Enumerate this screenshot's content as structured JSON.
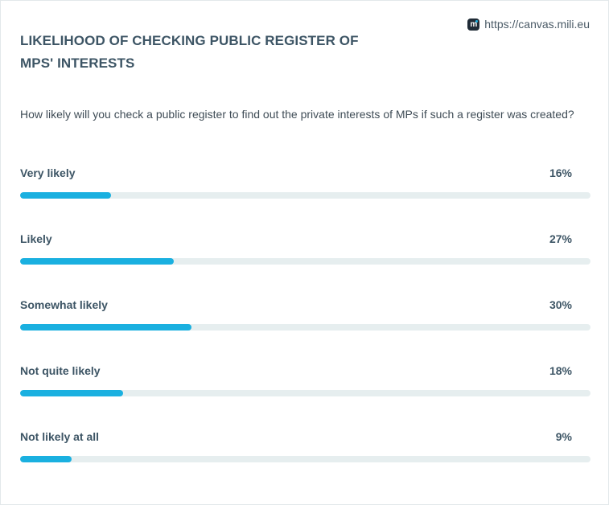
{
  "brand": {
    "icon": "mili-logo-icon",
    "url": "https://canvas.mili.eu"
  },
  "title": "LIKELIHOOD OF CHECKING PUBLIC REGISTER OF MPS' INTERESTS",
  "question": "How likely will you check a public register to find out the private interests of MPs if such a register was created?",
  "colors": {
    "accent": "#1ab0e0",
    "track": "#e6eeef",
    "text": "#3d5565"
  },
  "chart_data": {
    "type": "bar",
    "categories": [
      "Very likely",
      "Likely",
      "Somewhat likely",
      "Not quite likely",
      "Not likely at all"
    ],
    "values": [
      16,
      27,
      30,
      18,
      9
    ],
    "value_labels": [
      "16%",
      "27%",
      "30%",
      "18%",
      "9%"
    ],
    "unit": "%",
    "title": "LIKELIHOOD OF CHECKING PUBLIC REGISTER OF MPS' INTERESTS",
    "orientation": "horizontal",
    "xlim": [
      0,
      100
    ],
    "grid": false,
    "legend": "none"
  }
}
